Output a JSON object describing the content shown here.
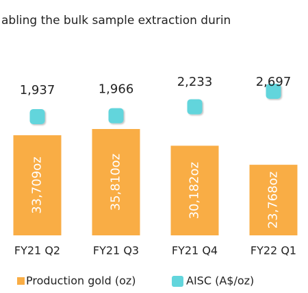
{
  "header_text": "abling the bulk sample extraction durin",
  "chart_data": {
    "type": "bar",
    "categories": [
      "FY21 Q2",
      "FY21 Q3",
      "FY21 Q4",
      "FY22 Q1"
    ],
    "series": [
      {
        "name": "Production gold (oz)",
        "color": "#f9ad45",
        "values": [
          33709,
          35810,
          30182,
          23768
        ],
        "value_labels": [
          "33,709oz",
          "35,810oz",
          "30,182oz",
          "23,768oz"
        ]
      },
      {
        "name": "AISC (A$/oz)",
        "color": "#62d5dc",
        "values": [
          1937,
          1966,
          2233,
          2697
        ],
        "value_labels": [
          "1,937",
          "1,966",
          "2,233",
          "2,697"
        ]
      }
    ]
  }
}
